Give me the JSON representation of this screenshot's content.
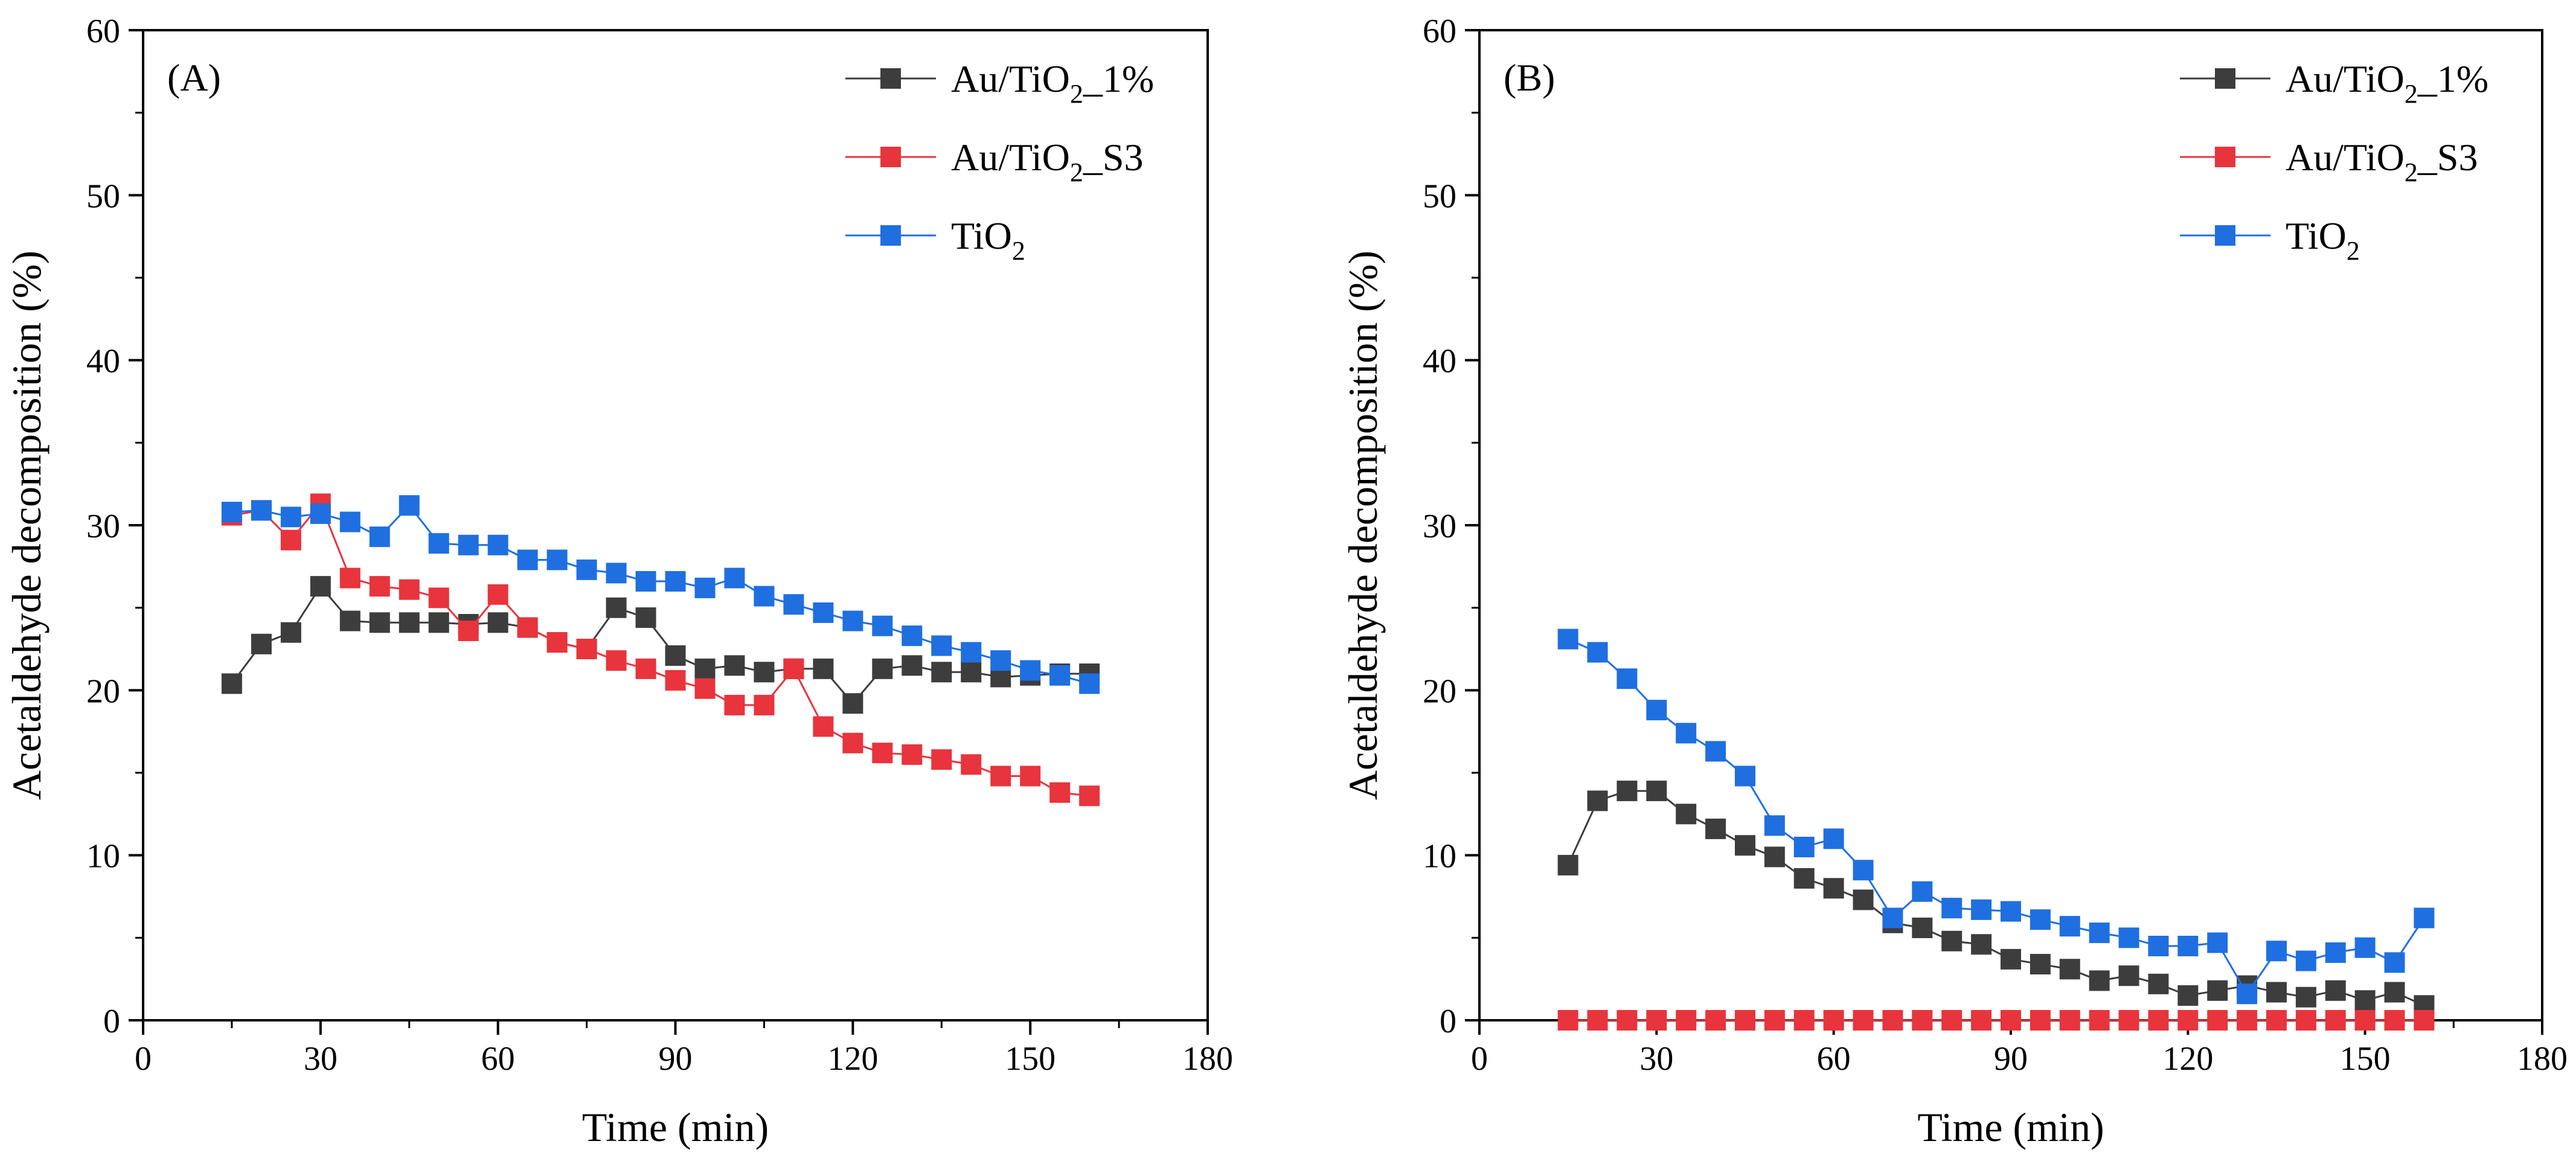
{
  "chart_data": [
    {
      "type": "line",
      "panel_label": "(A)",
      "xlabel": "Time (min)",
      "ylabel": "Acetaldehyde decomposition (%)",
      "xlim": [
        0,
        180
      ],
      "ylim": [
        0,
        60
      ],
      "xticks": [
        "0",
        "30",
        "60",
        "90",
        "120",
        "150",
        "180"
      ],
      "yticks": [
        "0",
        "10",
        "20",
        "30",
        "40",
        "50",
        "60"
      ],
      "grid": false,
      "legend_position": "top-right",
      "x": [
        15,
        20,
        25,
        30,
        35,
        40,
        45,
        50,
        55,
        60,
        65,
        70,
        75,
        80,
        85,
        90,
        95,
        100,
        105,
        110,
        115,
        120,
        125,
        130,
        135,
        140,
        145,
        150,
        155,
        160
      ],
      "series": [
        {
          "name": "Au/TiO2_1%",
          "legend_parts": [
            "Au/TiO",
            "2",
            "_1%"
          ],
          "color": "#3d3d3d",
          "values": [
            20.4,
            22.8,
            23.5,
            26.3,
            24.2,
            24.1,
            24.1,
            24.1,
            24.0,
            24.1,
            23.8,
            22.9,
            22.5,
            25.0,
            24.4,
            22.1,
            21.3,
            21.5,
            21.1,
            21.3,
            21.3,
            19.2,
            21.3,
            21.5,
            21.1,
            21.1,
            20.8,
            20.9,
            21.0,
            21.0
          ]
        },
        {
          "name": "Au/TiO2_S3",
          "legend_parts": [
            "Au/TiO",
            "2",
            "_S3"
          ],
          "color": "#e8343c",
          "values": [
            30.6,
            30.9,
            29.1,
            31.3,
            26.8,
            26.3,
            26.1,
            25.6,
            23.6,
            25.8,
            23.8,
            22.9,
            22.5,
            21.8,
            21.3,
            20.6,
            20.1,
            19.1,
            19.1,
            21.3,
            17.8,
            16.8,
            16.2,
            16.1,
            15.8,
            15.5,
            14.8,
            14.8,
            13.8,
            13.6
          ]
        },
        {
          "name": "TiO2",
          "legend_parts": [
            "TiO",
            "2",
            ""
          ],
          "color": "#1f6fe0",
          "values": [
            30.8,
            30.9,
            30.5,
            30.7,
            30.2,
            29.3,
            31.2,
            28.9,
            28.8,
            28.8,
            27.9,
            27.9,
            27.3,
            27.1,
            26.6,
            26.6,
            26.2,
            26.8,
            25.7,
            25.2,
            24.7,
            24.2,
            23.9,
            23.3,
            22.7,
            22.3,
            21.8,
            21.2,
            20.9,
            20.4
          ]
        }
      ]
    },
    {
      "type": "line",
      "panel_label": "(B)",
      "xlabel": "Time (min)",
      "ylabel": "Acetaldehyde decomposition (%)",
      "xlim": [
        0,
        180
      ],
      "ylim": [
        0,
        60
      ],
      "xticks": [
        "0",
        "30",
        "60",
        "90",
        "120",
        "150",
        "180"
      ],
      "yticks": [
        "0",
        "10",
        "20",
        "30",
        "40",
        "50",
        "60"
      ],
      "grid": false,
      "legend_position": "top-right",
      "x": [
        15,
        20,
        25,
        30,
        35,
        40,
        45,
        50,
        55,
        60,
        65,
        70,
        75,
        80,
        85,
        90,
        95,
        100,
        105,
        110,
        115,
        120,
        125,
        130,
        135,
        140,
        145,
        150,
        155,
        160
      ],
      "series": [
        {
          "name": "Au/TiO2_1%",
          "legend_parts": [
            "Au/TiO",
            "2",
            "_1%"
          ],
          "color": "#3d3d3d",
          "values": [
            9.4,
            13.3,
            13.9,
            13.9,
            12.5,
            11.6,
            10.6,
            9.9,
            8.6,
            8.0,
            7.3,
            5.9,
            5.6,
            4.8,
            4.6,
            3.7,
            3.4,
            3.1,
            2.4,
            2.7,
            2.2,
            1.5,
            1.8,
            2.1,
            1.7,
            1.4,
            1.8,
            1.2,
            1.7,
            0.9
          ]
        },
        {
          "name": "Au/TiO2_S3",
          "legend_parts": [
            "Au/TiO",
            "2",
            "_S3"
          ],
          "color": "#e8343c",
          "values": [
            0,
            0,
            0,
            0,
            0,
            0,
            0,
            0,
            0,
            0,
            0,
            0,
            0,
            0,
            0,
            0,
            0,
            0,
            0,
            0,
            0,
            0,
            0,
            0,
            0,
            0,
            0,
            0,
            0,
            0
          ]
        },
        {
          "name": "TiO2",
          "legend_parts": [
            "TiO",
            "2",
            ""
          ],
          "color": "#1f6fe0",
          "values": [
            23.1,
            22.3,
            20.7,
            18.8,
            17.4,
            16.3,
            14.8,
            11.8,
            10.5,
            11.0,
            9.1,
            6.2,
            7.8,
            6.8,
            6.7,
            6.6,
            6.1,
            5.7,
            5.3,
            5.0,
            4.5,
            4.5,
            4.7,
            1.6,
            4.2,
            3.6,
            4.1,
            4.4,
            3.5,
            6.2
          ]
        }
      ]
    }
  ]
}
